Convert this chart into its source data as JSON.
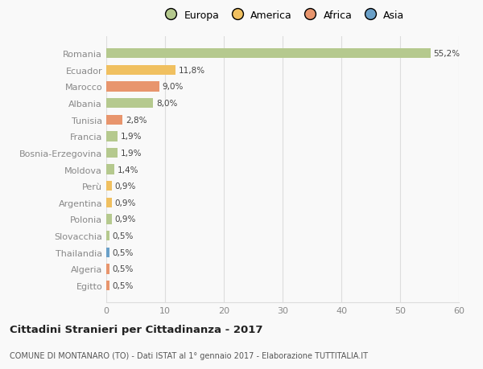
{
  "countries": [
    "Romania",
    "Ecuador",
    "Marocco",
    "Albania",
    "Tunisia",
    "Francia",
    "Bosnia-Erzegovina",
    "Moldova",
    "Perù",
    "Argentina",
    "Polonia",
    "Slovacchia",
    "Thailandia",
    "Algeria",
    "Egitto"
  ],
  "values": [
    55.2,
    11.8,
    9.0,
    8.0,
    2.8,
    1.9,
    1.9,
    1.4,
    0.9,
    0.9,
    0.9,
    0.5,
    0.5,
    0.5,
    0.5
  ],
  "labels": [
    "55,2%",
    "11,8%",
    "9,0%",
    "8,0%",
    "2,8%",
    "1,9%",
    "1,9%",
    "1,4%",
    "0,9%",
    "0,9%",
    "0,9%",
    "0,5%",
    "0,5%",
    "0,5%",
    "0,5%"
  ],
  "colors": [
    "#b5c98e",
    "#f0c060",
    "#e8956d",
    "#b5c98e",
    "#e8956d",
    "#b5c98e",
    "#b5c98e",
    "#b5c98e",
    "#f0c060",
    "#f0c060",
    "#b5c98e",
    "#b5c98e",
    "#6aa0c8",
    "#e8956d",
    "#e8956d"
  ],
  "legend_labels": [
    "Europa",
    "America",
    "Africa",
    "Asia"
  ],
  "legend_colors": [
    "#b5c98e",
    "#f0c060",
    "#e8956d",
    "#6aa0c8"
  ],
  "title": "Cittadini Stranieri per Cittadinanza - 2017",
  "subtitle": "COMUNE DI MONTANARO (TO) - Dati ISTAT al 1° gennaio 2017 - Elaborazione TUTTITALIA.IT",
  "xlim": [
    0,
    60
  ],
  "xticks": [
    0,
    10,
    20,
    30,
    40,
    50,
    60
  ],
  "bg_color": "#f9f9f9",
  "grid_color": "#dddddd"
}
